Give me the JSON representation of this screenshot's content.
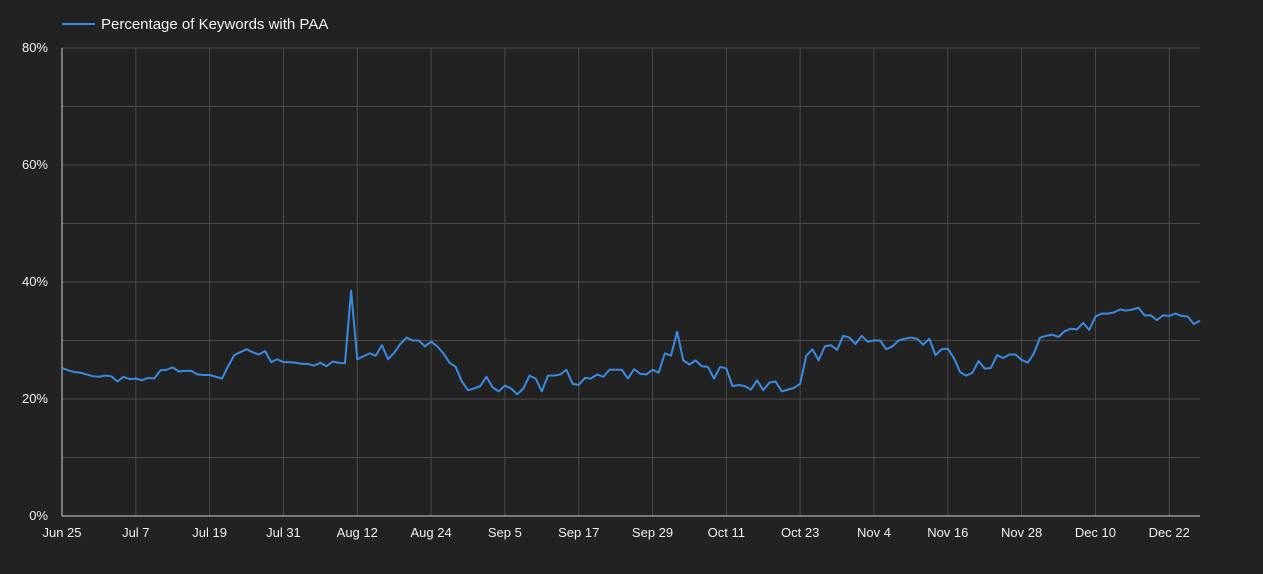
{
  "colors": {
    "background": "#222222",
    "grid": "#4a4a4a",
    "axis": "#cfcfcf",
    "series": "#3a8be0",
    "text": "#f0f0f0"
  },
  "chart_data": {
    "type": "line",
    "title": "",
    "xlabel": "",
    "ylabel": "",
    "ylim": [
      0,
      80
    ],
    "y_ticks": [
      "0%",
      "20%",
      "40%",
      "60%",
      "80%"
    ],
    "x_ticks": [
      "Jun 25",
      "Jul 7",
      "Jul 19",
      "Jul 31",
      "Aug 12",
      "Aug 24",
      "Sep 5",
      "Sep 17",
      "Sep 29",
      "Oct 11",
      "Oct 23",
      "Nov 4",
      "Nov 16",
      "Nov 28",
      "Dec 10",
      "Dec 22"
    ],
    "x_tick_dates": [
      "2023-06-25",
      "2023-07-07",
      "2023-07-19",
      "2023-07-31",
      "2023-08-12",
      "2023-08-24",
      "2023-09-05",
      "2023-09-17",
      "2023-09-29",
      "2023-10-11",
      "2023-10-23",
      "2023-11-04",
      "2023-11-16",
      "2023-11-28",
      "2023-12-10",
      "2023-12-22"
    ],
    "grid": true,
    "legend_position": "top-left",
    "series": [
      {
        "name": "Percentage of Keywords with PAA",
        "x_start": "2023-06-25",
        "values": [
          25.3,
          24.9,
          24.6,
          24.5,
          24.2,
          23.9,
          23.8,
          24.0,
          23.9,
          23.0,
          23.8,
          23.4,
          23.5,
          23.2,
          23.6,
          23.5,
          24.9,
          25.0,
          25.4,
          24.7,
          24.8,
          24.8,
          24.2,
          24.1,
          24.1,
          23.8,
          23.5,
          25.6,
          27.5,
          28.0,
          28.5,
          28.0,
          27.6,
          28.2,
          26.3,
          26.8,
          26.3,
          26.3,
          26.2,
          26.0,
          26.0,
          25.7,
          26.2,
          25.6,
          26.4,
          26.2,
          26.1,
          38.5,
          26.8,
          27.3,
          27.8,
          27.4,
          29.2,
          26.8,
          27.9,
          29.4,
          30.5,
          30.0,
          30.0,
          29.0,
          29.8,
          29.0,
          27.8,
          26.2,
          25.5,
          23.0,
          21.5,
          21.8,
          22.2,
          23.8,
          22.0,
          21.3,
          22.3,
          21.8,
          20.8,
          21.8,
          24.0,
          23.5,
          21.3,
          24.0,
          24.0,
          24.2,
          25.0,
          22.6,
          22.4,
          23.6,
          23.5,
          24.2,
          23.8,
          25.0,
          25.0,
          25.0,
          23.5,
          25.1,
          24.3,
          24.2,
          25.0,
          24.5,
          27.8,
          27.4,
          31.5,
          26.6,
          25.9,
          26.6,
          25.6,
          25.5,
          23.5,
          25.5,
          25.2,
          22.2,
          22.4,
          22.2,
          21.6,
          23.2,
          21.5,
          22.8,
          23.0,
          21.3,
          21.6,
          21.9,
          22.6,
          27.4,
          28.5,
          26.6,
          29.0,
          29.2,
          28.4,
          30.8,
          30.5,
          29.4,
          30.8,
          29.8,
          30.0,
          30.0,
          28.5,
          29.0,
          30.0,
          30.3,
          30.5,
          30.3,
          29.3,
          30.3,
          27.5,
          28.5,
          28.6,
          27.0,
          24.6,
          24.0,
          24.5,
          26.5,
          25.2,
          25.3,
          27.5,
          27.0,
          27.6,
          27.6,
          26.7,
          26.2,
          27.8,
          30.5,
          30.8,
          31.0,
          30.6,
          31.6,
          32.0,
          31.9,
          33.0,
          31.8,
          34.1,
          34.6,
          34.6,
          34.8,
          35.3,
          35.1,
          35.3,
          35.6,
          34.3,
          34.3,
          33.5,
          34.3,
          34.2,
          34.6,
          34.2,
          34.1,
          32.8,
          33.4
        ]
      }
    ]
  }
}
